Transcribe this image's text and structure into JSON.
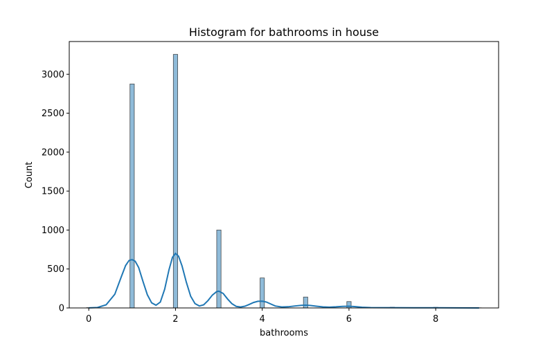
{
  "chart_data": {
    "type": "bar",
    "title": "Histogram for bathrooms in house",
    "xlabel": "bathrooms",
    "ylabel": "Count",
    "xlim": [
      -0.45,
      9.45
    ],
    "ylim": [
      0,
      3420
    ],
    "xticks": [
      0,
      2,
      4,
      6,
      8
    ],
    "yticks": [
      0,
      500,
      1000,
      1500,
      2000,
      2500,
      3000
    ],
    "bin_width": 0.1,
    "bar_color": "#1f77b4",
    "bins": [
      {
        "x": 0,
        "count": 4
      },
      {
        "x": 1,
        "count": 2875
      },
      {
        "x": 2,
        "count": 3255
      },
      {
        "x": 3,
        "count": 1000
      },
      {
        "x": 4,
        "count": 385
      },
      {
        "x": 5,
        "count": 140
      },
      {
        "x": 6,
        "count": 82
      },
      {
        "x": 7,
        "count": 10
      },
      {
        "x": 8,
        "count": 8
      },
      {
        "x": 9,
        "count": 2
      }
    ],
    "kde": {
      "color": "#1f77b4",
      "points": [
        [
          0,
          1
        ],
        [
          0.2,
          6
        ],
        [
          0.4,
          40
        ],
        [
          0.6,
          175
        ],
        [
          0.75,
          400
        ],
        [
          0.85,
          545
        ],
        [
          0.93,
          610
        ],
        [
          1.0,
          620
        ],
        [
          1.07,
          600
        ],
        [
          1.15,
          520
        ],
        [
          1.25,
          340
        ],
        [
          1.35,
          170
        ],
        [
          1.45,
          65
        ],
        [
          1.55,
          35
        ],
        [
          1.65,
          75
        ],
        [
          1.75,
          240
        ],
        [
          1.85,
          490
        ],
        [
          1.93,
          650
        ],
        [
          2.0,
          700
        ],
        [
          2.07,
          665
        ],
        [
          2.15,
          540
        ],
        [
          2.25,
          330
        ],
        [
          2.35,
          150
        ],
        [
          2.45,
          55
        ],
        [
          2.55,
          25
        ],
        [
          2.65,
          40
        ],
        [
          2.75,
          95
        ],
        [
          2.85,
          165
        ],
        [
          2.95,
          210
        ],
        [
          3.0,
          215
        ],
        [
          3.1,
          185
        ],
        [
          3.2,
          115
        ],
        [
          3.3,
          55
        ],
        [
          3.4,
          20
        ],
        [
          3.5,
          12
        ],
        [
          3.6,
          22
        ],
        [
          3.7,
          45
        ],
        [
          3.8,
          70
        ],
        [
          3.9,
          85
        ],
        [
          4.0,
          87
        ],
        [
          4.1,
          75
        ],
        [
          4.2,
          50
        ],
        [
          4.3,
          25
        ],
        [
          4.45,
          12
        ],
        [
          4.6,
          15
        ],
        [
          4.75,
          25
        ],
        [
          4.9,
          33
        ],
        [
          5.0,
          35
        ],
        [
          5.1,
          32
        ],
        [
          5.25,
          22
        ],
        [
          5.4,
          13
        ],
        [
          5.55,
          10
        ],
        [
          5.7,
          14
        ],
        [
          5.85,
          20
        ],
        [
          6.0,
          22
        ],
        [
          6.15,
          17
        ],
        [
          6.3,
          9
        ],
        [
          6.5,
          4
        ],
        [
          7.0,
          3
        ],
        [
          7.5,
          2
        ],
        [
          8.0,
          2
        ],
        [
          8.5,
          1
        ],
        [
          9.0,
          0
        ]
      ]
    }
  }
}
